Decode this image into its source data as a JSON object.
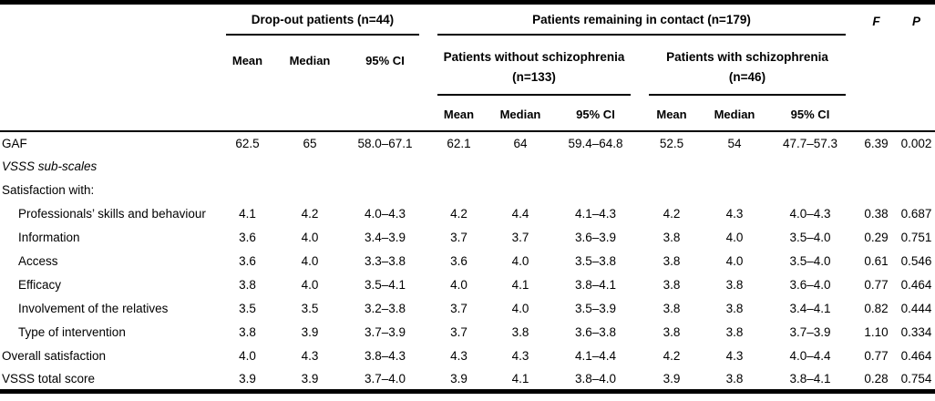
{
  "colors": {
    "text": "#000000",
    "background": "#ffffff",
    "rule": "#000000"
  },
  "table": {
    "groups": {
      "dropout": {
        "label": "Drop-out patients (n=44)"
      },
      "remaining": {
        "label": "Patients remaining in contact (n=179)"
      },
      "without_schizophrenia": {
        "title": "Patients without schizophrenia",
        "n": "(n=133)"
      },
      "with_schizophrenia": {
        "title": "Patients with schizophrenia",
        "n": "(n=46)"
      }
    },
    "stat_headers": {
      "mean": "Mean",
      "median": "Median",
      "ci": "95% CI"
    },
    "f_label": "F",
    "p_label": "P",
    "rows": [
      {
        "label": "GAF",
        "indent": false,
        "style": "normal",
        "values": [
          "62.5",
          "65",
          "58.0–67.1",
          "62.1",
          "64",
          "59.4–64.8",
          "52.5",
          "54",
          "47.7–57.3",
          "6.39",
          "0.002"
        ]
      },
      {
        "label": "VSSS sub-scales",
        "indent": false,
        "style": "italic",
        "values": []
      },
      {
        "label": "Satisfaction with:",
        "indent": false,
        "style": "normal",
        "values": []
      },
      {
        "label": "Professionals’ skills and behaviour",
        "indent": true,
        "style": "normal",
        "values": [
          "4.1",
          "4.2",
          "4.0–4.3",
          "4.2",
          "4.4",
          "4.1–4.3",
          "4.2",
          "4.3",
          "4.0–4.3",
          "0.38",
          "0.687"
        ]
      },
      {
        "label": "Information",
        "indent": true,
        "style": "normal",
        "values": [
          "3.6",
          "4.0",
          "3.4–3.9",
          "3.7",
          "3.7",
          "3.6–3.9",
          "3.8",
          "4.0",
          "3.5–4.0",
          "0.29",
          "0.751"
        ]
      },
      {
        "label": "Access",
        "indent": true,
        "style": "normal",
        "values": [
          "3.6",
          "4.0",
          "3.3–3.8",
          "3.6",
          "4.0",
          "3.5–3.8",
          "3.8",
          "4.0",
          "3.5–4.0",
          "0.61",
          "0.546"
        ]
      },
      {
        "label": "Efficacy",
        "indent": true,
        "style": "normal",
        "values": [
          "3.8",
          "4.0",
          "3.5–4.1",
          "4.0",
          "4.1",
          "3.8–4.1",
          "3.8",
          "3.8",
          "3.6–4.0",
          "0.77",
          "0.464"
        ]
      },
      {
        "label": "Involvement of the relatives",
        "indent": true,
        "style": "normal",
        "values": [
          "3.5",
          "3.5",
          "3.2–3.8",
          "3.7",
          "4.0",
          "3.5–3.9",
          "3.8",
          "3.8",
          "3.4–4.1",
          "0.82",
          "0.444"
        ]
      },
      {
        "label": "Type of intervention",
        "indent": true,
        "style": "normal",
        "values": [
          "3.8",
          "3.9",
          "3.7–3.9",
          "3.7",
          "3.8",
          "3.6–3.8",
          "3.8",
          "3.8",
          "3.7–3.9",
          "1.10",
          "0.334"
        ]
      },
      {
        "label": "Overall satisfaction",
        "indent": false,
        "style": "normal",
        "values": [
          "4.0",
          "4.3",
          "3.8–4.3",
          "4.3",
          "4.3",
          "4.1–4.4",
          "4.2",
          "4.3",
          "4.0–4.4",
          "0.77",
          "0.464"
        ]
      },
      {
        "label": "VSSS total score",
        "indent": false,
        "style": "normal",
        "values": [
          "3.9",
          "3.9",
          "3.7–4.0",
          "3.9",
          "4.1",
          "3.8–4.0",
          "3.9",
          "3.8",
          "3.8–4.1",
          "0.28",
          "0.754"
        ]
      }
    ]
  }
}
